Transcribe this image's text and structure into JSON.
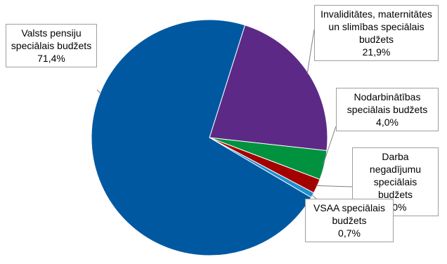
{
  "chart_data": {
    "type": "pie",
    "title": "",
    "slices": [
      {
        "label": "Valsts pensiju speciālais budžets",
        "label_lines": [
          "Valsts pensiju",
          "speciālais budžets"
        ],
        "value": 71.4,
        "value_text": "71,4%",
        "color": "#0059a0"
      },
      {
        "label": "Invaliditātes, maternitātes un slimības speciālais budžets",
        "label_lines": [
          "Invaliditātes, maternitātes",
          "un slimības speciālais",
          "budžets"
        ],
        "value": 21.9,
        "value_text": "21,9%",
        "color": "#5c2a86"
      },
      {
        "label": "Nodarbinātības speciālais budžets",
        "label_lines": [
          "Nodarbinātības",
          "speciālais budžets"
        ],
        "value": 4.0,
        "value_text": "4,0%",
        "color": "#00923f"
      },
      {
        "label": "Darba negadījumu speciālais budžets",
        "label_lines": [
          "Darba negadījumu",
          "speciālais budžets"
        ],
        "value": 2.0,
        "value_text": "2,0%",
        "color": "#a30000"
      },
      {
        "label": "VSAA speciālais budžets",
        "label_lines": [
          "VSAA speciālais",
          "budžets"
        ],
        "value": 0.7,
        "value_text": "0,7%",
        "color": "#1e8fd0"
      }
    ]
  }
}
